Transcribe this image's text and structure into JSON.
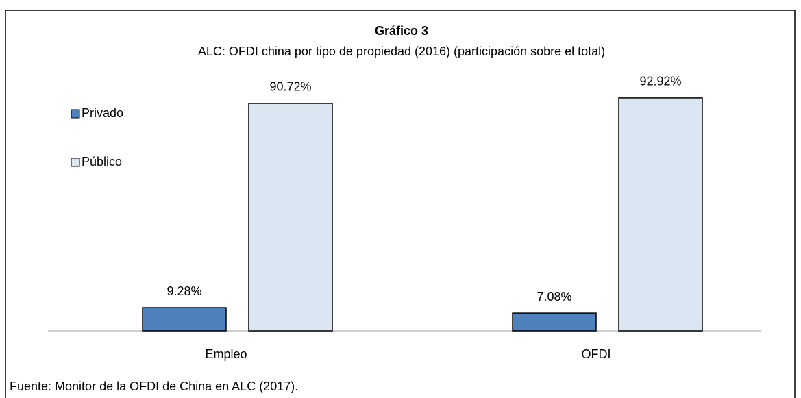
{
  "chart_data": {
    "type": "bar",
    "title": "Gráfico 3",
    "subtitle": "ALC: OFDI china por tipo de propiedad (2016) (participación sobre el total)",
    "categories": [
      "Empleo",
      "OFDI"
    ],
    "series": [
      {
        "name": "Privado",
        "color": "#4f81bd",
        "values": [
          9.28,
          7.08
        ],
        "value_labels": [
          "9.28%",
          "7.08%"
        ]
      },
      {
        "name": "Público",
        "color": "#dce6f2",
        "values": [
          90.72,
          92.92
        ],
        "value_labels": [
          "90.72%",
          "92.92%"
        ]
      }
    ],
    "ylim": [
      0,
      100
    ],
    "legend": "left",
    "source": "Fuente: Monitor de la OFDI de China en ALC (2017)."
  }
}
